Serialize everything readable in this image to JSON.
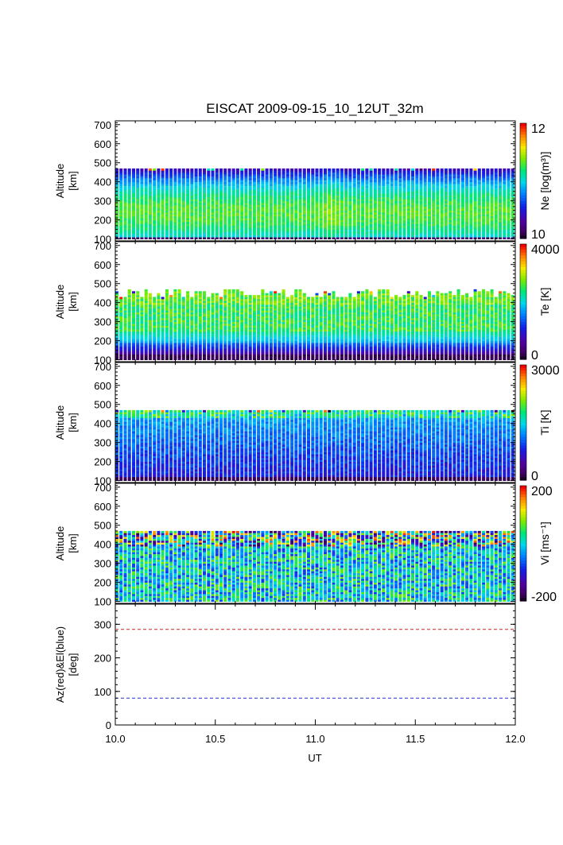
{
  "chart_data": {
    "type": "heatmap",
    "title": "EISCAT 2009-09-15_10_12UT_32m",
    "xlabel": "UT",
    "xlim": [
      10.0,
      12.0
    ],
    "xticks": [
      "10.0",
      "10.5",
      "11.0",
      "11.5",
      "12.0"
    ],
    "xtick_values": [
      10.0,
      10.5,
      11.0,
      11.5,
      12.0
    ],
    "panels": [
      {
        "id": "ne",
        "ylabel_lines": [
          "Altitude",
          "[km]"
        ],
        "ylim": [
          90,
          720
        ],
        "yticks": [
          "100",
          "200",
          "300",
          "400",
          "500",
          "600",
          "700"
        ],
        "ytick_values": [
          100,
          200,
          300,
          400,
          500,
          600,
          700
        ],
        "colorbar_label": "Ne [log(m³)]",
        "colorbar_range": [
          10,
          12
        ],
        "colorbar_ticks": [
          "10",
          "12"
        ],
        "colorscale": "rainbow",
        "data_alt_range": [
          100,
          470
        ]
      },
      {
        "id": "te",
        "ylabel_lines": [
          "Altitude",
          "[km]"
        ],
        "ylim": [
          90,
          720
        ],
        "yticks": [
          "100",
          "200",
          "300",
          "400",
          "500",
          "600",
          "700"
        ],
        "ytick_values": [
          100,
          200,
          300,
          400,
          500,
          600,
          700
        ],
        "colorbar_label": "Te [K]",
        "colorbar_range": [
          0,
          4000
        ],
        "colorbar_ticks": [
          "0",
          "4000"
        ],
        "colorscale": "rainbow",
        "data_alt_range": [
          100,
          470
        ]
      },
      {
        "id": "ti",
        "ylabel_lines": [
          "Altitude",
          "[km]"
        ],
        "ylim": [
          90,
          720
        ],
        "yticks": [
          "100",
          "200",
          "300",
          "400",
          "500",
          "600",
          "700"
        ],
        "ytick_values": [
          100,
          200,
          300,
          400,
          500,
          600,
          700
        ],
        "colorbar_label": "Ti [K]",
        "colorbar_range": [
          0,
          3000
        ],
        "colorbar_ticks": [
          "0",
          "3000"
        ],
        "colorscale": "rainbow",
        "data_alt_range": [
          100,
          470
        ]
      },
      {
        "id": "vi",
        "ylabel_lines": [
          "Altitude",
          "[km]"
        ],
        "ylim": [
          90,
          720
        ],
        "yticks": [
          "100",
          "200",
          "300",
          "400",
          "500",
          "600",
          "700"
        ],
        "ytick_values": [
          100,
          200,
          300,
          400,
          500,
          600,
          700
        ],
        "colorbar_label": "Vi [ms⁻¹]",
        "colorbar_range": [
          -200,
          200
        ],
        "colorbar_ticks": [
          "-200",
          "200"
        ],
        "colorscale": "rainbow",
        "data_alt_range": [
          100,
          470
        ]
      }
    ],
    "line_panel": {
      "id": "azel",
      "ylabel_lines": [
        "Az(red)&El(blue)",
        "[deg]"
      ],
      "ylim": [
        0,
        360
      ],
      "yticks": [
        "0",
        "100",
        "200",
        "300"
      ],
      "ytick_values": [
        0,
        100,
        200,
        300
      ],
      "series": [
        {
          "name": "Az",
          "color": "#cc2222",
          "x": [
            10.0,
            12.0
          ],
          "values": [
            285,
            285
          ],
          "style": "dashed"
        },
        {
          "name": "El",
          "color": "#2233cc",
          "x": [
            10.0,
            12.0
          ],
          "values": [
            80,
            80
          ],
          "style": "dashed"
        }
      ]
    }
  }
}
